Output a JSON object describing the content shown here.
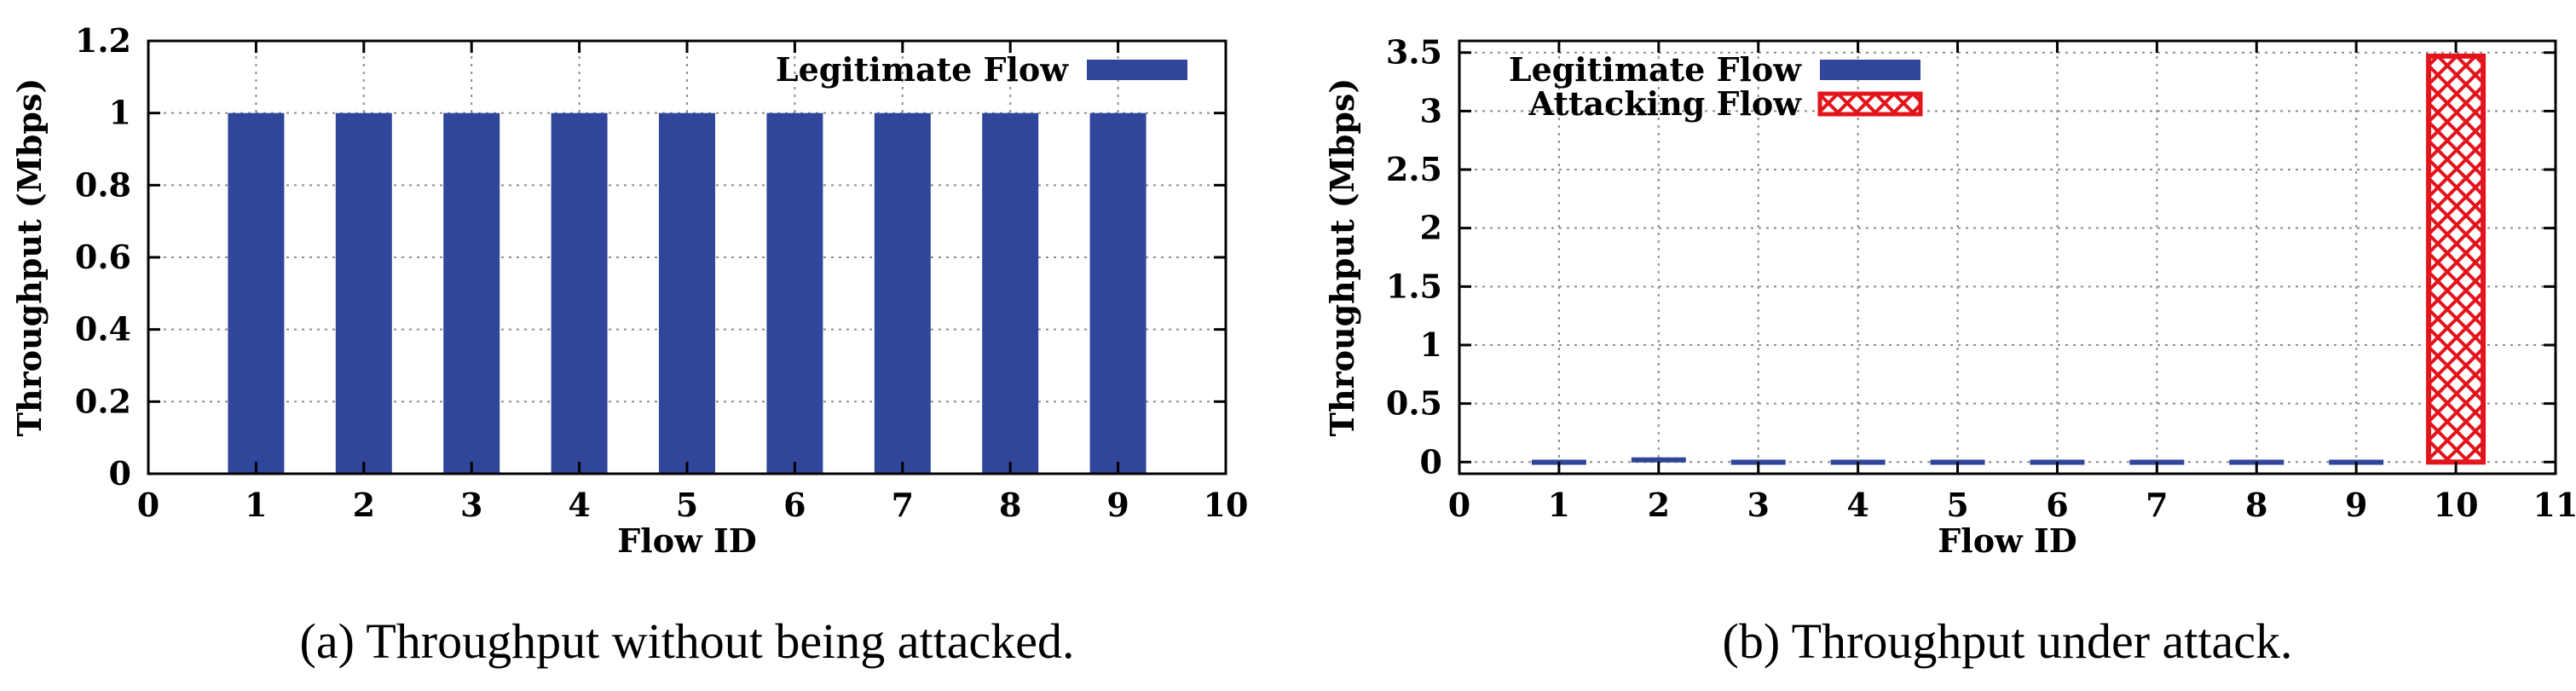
{
  "chart_data": [
    {
      "type": "bar",
      "caption": "(a)  Throughput without being attacked.",
      "xlabel": "Flow ID",
      "ylabel": "Throughput (Mbps)",
      "xlim": [
        0,
        10
      ],
      "ylim": [
        0,
        1.2
      ],
      "xticks": [
        0,
        1,
        2,
        3,
        4,
        5,
        6,
        7,
        8,
        9,
        10
      ],
      "yticks": [
        0,
        0.2,
        0.4,
        0.6,
        0.8,
        1,
        1.2
      ],
      "grid": true,
      "legend_position": "top-right",
      "series": [
        {
          "name": "Legitimate Flow",
          "color": "#30469b",
          "pattern": "solid",
          "x": [
            1,
            2,
            3,
            4,
            5,
            6,
            7,
            8,
            9
          ],
          "values": [
            1,
            1,
            1,
            1,
            1,
            1,
            1,
            1,
            1
          ]
        }
      ]
    },
    {
      "type": "bar",
      "caption": "(b)  Throughput under attack.",
      "xlabel": "Flow ID",
      "ylabel": "Throughput (Mbps)",
      "xlim": [
        0,
        11
      ],
      "ylim": [
        -0.1,
        3.6
      ],
      "xticks": [
        0,
        1,
        2,
        3,
        4,
        5,
        6,
        7,
        8,
        9,
        10,
        11
      ],
      "yticks": [
        0,
        0.5,
        1,
        1.5,
        2,
        2.5,
        3,
        3.5
      ],
      "grid": true,
      "legend_position": "top-left",
      "series": [
        {
          "name": "Legitimate Flow",
          "color": "#30469b",
          "pattern": "solid",
          "x": [
            1,
            2,
            3,
            4,
            5,
            6,
            7,
            8,
            9
          ],
          "values": [
            0.02,
            0.04,
            0.02,
            0.02,
            0.02,
            0.02,
            0.02,
            0.02,
            0.02
          ]
        },
        {
          "name": "Attacking Flow",
          "color": "#e3141b",
          "pattern": "crosshatch",
          "x": [
            10
          ],
          "values": [
            3.47
          ]
        }
      ]
    }
  ]
}
